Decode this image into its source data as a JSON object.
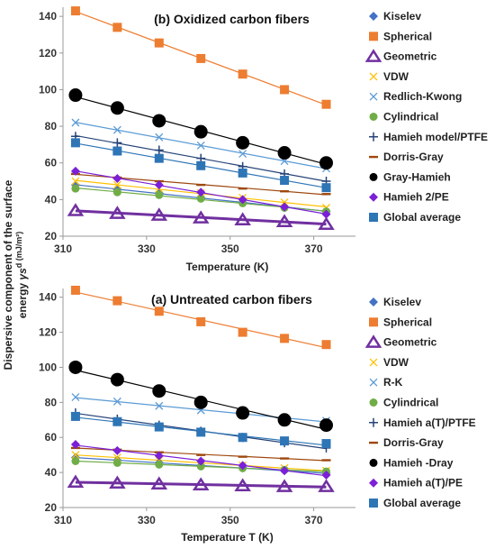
{
  "ylabel_line1": "Dispersive component of the surface",
  "ylabel_line2_prefix": "energy ",
  "ylabel_line2_symbol": "γs",
  "ylabel_line2_suffix": "d (mJ/m²)",
  "chart_data": [
    {
      "type": "scatter",
      "title": "(b) Oxidized carbon fibers",
      "xlabel": "Temperature (K)",
      "ylabel": "Dispersive component of the surface energy γs d (mJ/m²)",
      "xlim": [
        310,
        380
      ],
      "ylim": [
        20,
        145
      ],
      "x_ticks": [
        310,
        330,
        350,
        370
      ],
      "y_ticks": [
        20,
        40,
        60,
        80,
        100,
        120,
        140
      ],
      "x": [
        313,
        323,
        333,
        343,
        353,
        363,
        373
      ],
      "legend_position": "right",
      "series": [
        {
          "name": "Kiselev",
          "values": [
            48,
            45.5,
            43.5,
            41,
            38.5,
            36,
            33.5
          ],
          "color": "#4472C4",
          "marker": "diamond"
        },
        {
          "name": "Spherical",
          "values": [
            143,
            134,
            125.5,
            117,
            108.5,
            100,
            92
          ],
          "color": "#ED7D31",
          "marker": "square"
        },
        {
          "name": "Geometric",
          "values": [
            34,
            32.5,
            31.5,
            30,
            29,
            28,
            26.5
          ],
          "color": "#7030A0",
          "marker": "triangle"
        },
        {
          "name": "VDW",
          "values": [
            50,
            48,
            46,
            43.5,
            41,
            38.5,
            35.5
          ],
          "color": "#FFC000",
          "marker": "x"
        },
        {
          "name": "Redlich-Kwong",
          "values": [
            82,
            78,
            74,
            69.5,
            65,
            61,
            57
          ],
          "color": "#5B9BD5",
          "marker": "x"
        },
        {
          "name": "Cylindrical",
          "values": [
            46,
            44,
            42.5,
            40.5,
            38,
            35.5,
            33.5
          ],
          "color": "#70AD47",
          "marker": "circle"
        },
        {
          "name": "Hamieh model/PTFE",
          "values": [
            74.5,
            71,
            67,
            62.5,
            58,
            54,
            50
          ],
          "color": "#264478",
          "marker": "plus"
        },
        {
          "name": "Dorris-Gray",
          "values": [
            54,
            52,
            50,
            48,
            46,
            44.5,
            43
          ],
          "color": "#9E480E",
          "marker": "dash"
        },
        {
          "name": "Gray-Hamieh",
          "values": [
            97,
            90,
            83,
            77,
            71,
            65.5,
            60
          ],
          "color": "#000000",
          "marker": "bigcircle"
        },
        {
          "name": "Hamieh 2/PE",
          "values": [
            55.5,
            51.5,
            48,
            44,
            40,
            36,
            32
          ],
          "color": "#7B1FD8",
          "marker": "diamond"
        },
        {
          "name": "Global average",
          "values": [
            71,
            66.5,
            62.5,
            58.5,
            54.5,
            50.5,
            46.5
          ],
          "color": "#2E75B6",
          "marker": "square"
        }
      ]
    },
    {
      "type": "scatter",
      "title": "(a) Untreated carbon fibers",
      "xlabel": "Temperature T (K)",
      "ylabel": "Dispersive component of the surface energy γs d (mJ/m²)",
      "xlim": [
        310,
        380
      ],
      "ylim": [
        20,
        145
      ],
      "x_ticks": [
        310,
        330,
        350,
        370
      ],
      "y_ticks": [
        20,
        40,
        60,
        80,
        100,
        120,
        140
      ],
      "x": [
        313,
        323,
        333,
        343,
        353,
        363,
        373
      ],
      "legend_position": "right",
      "series": [
        {
          "name": "Kiselev",
          "values": [
            48.5,
            47,
            45.5,
            44,
            42.5,
            41,
            39.5
          ],
          "color": "#4472C4",
          "marker": "diamond"
        },
        {
          "name": "Spherical",
          "values": [
            144,
            138,
            132,
            126,
            120,
            116.5,
            113
          ],
          "color": "#ED7D31",
          "marker": "square"
        },
        {
          "name": "Geometric",
          "values": [
            34.5,
            34,
            33.5,
            33,
            32.5,
            32,
            32
          ],
          "color": "#7030A0",
          "marker": "triangle"
        },
        {
          "name": "VDW",
          "values": [
            50,
            48.5,
            47,
            45.5,
            44,
            42.5,
            41
          ],
          "color": "#FFC000",
          "marker": "x"
        },
        {
          "name": "R-K",
          "values": [
            83,
            80.5,
            78,
            75.5,
            73,
            71,
            69.5
          ],
          "color": "#5B9BD5",
          "marker": "x"
        },
        {
          "name": "Cylindrical",
          "values": [
            46.5,
            45.5,
            44.5,
            43.5,
            42.5,
            41.5,
            40.5
          ],
          "color": "#70AD47",
          "marker": "circle"
        },
        {
          "name": "Hamieh a(T)/PTFE",
          "values": [
            74,
            70.5,
            67,
            63.5,
            60,
            57,
            54
          ],
          "color": "#264478",
          "marker": "plus"
        },
        {
          "name": "Dorris-Gray",
          "values": [
            54,
            53,
            51.5,
            50,
            49,
            48,
            47
          ],
          "color": "#9E480E",
          "marker": "dash"
        },
        {
          "name": "Hamieh -Dray",
          "values": [
            100,
            93,
            86.5,
            80,
            74,
            70,
            67
          ],
          "color": "#000000",
          "marker": "bigcircle"
        },
        {
          "name": "Hamieh a(T)/PE",
          "values": [
            56,
            52.5,
            49.5,
            46.5,
            44,
            41,
            38.5
          ],
          "color": "#7B1FD8",
          "marker": "diamond"
        },
        {
          "name": "Global average",
          "values": [
            72,
            69,
            66,
            63,
            60,
            58,
            56.5
          ],
          "color": "#2E75B6",
          "marker": "square"
        }
      ]
    }
  ]
}
